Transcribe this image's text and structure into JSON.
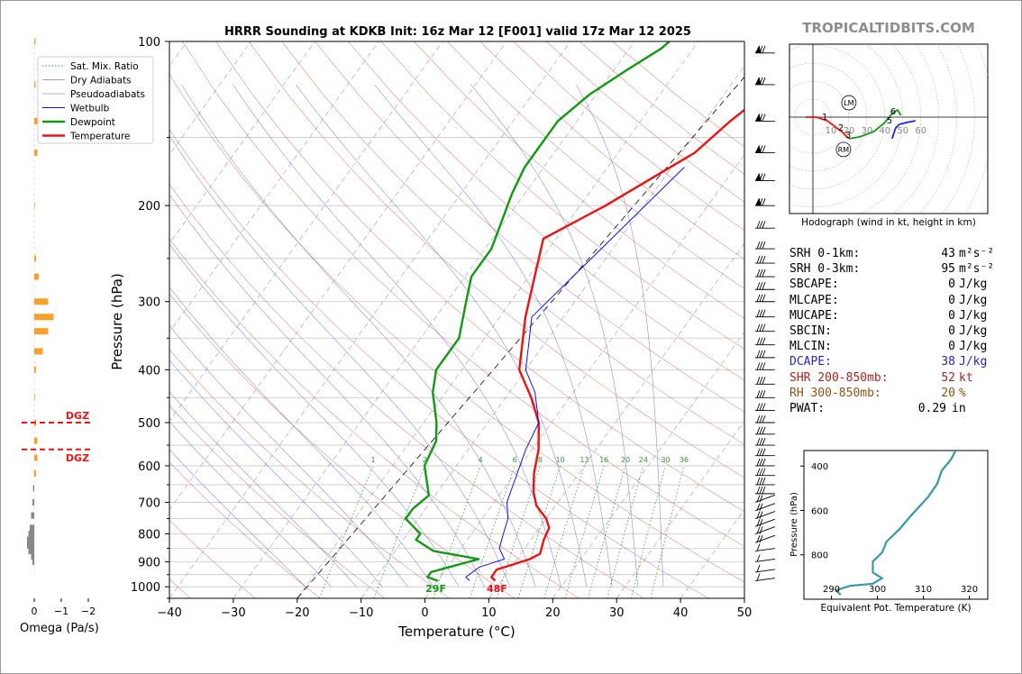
{
  "header": {
    "title": "HRRR Sounding at KDKB Init: 16z Mar 12 [F001] valid 17z Mar 12 2025",
    "brand": "TROPICALTIDBITS.COM"
  },
  "skewt": {
    "xlabel": "Temperature (°C)",
    "ylabel": "Pressure (hPa)",
    "xlim": [
      -40,
      50
    ],
    "pressure_range_hpa": [
      1050,
      100
    ],
    "x_ticks": [
      "−40",
      "−30",
      "−20",
      "−10",
      "0",
      "10",
      "20",
      "30",
      "40",
      "50"
    ],
    "y_ticks": [
      "100",
      "200",
      "300",
      "400",
      "500",
      "600",
      "700",
      "800",
      "900",
      "1000"
    ],
    "mixing_ratio_labels": [
      "1",
      "2",
      "4",
      "6",
      "8",
      "10",
      "13",
      "16",
      "20",
      "24",
      "30",
      "36"
    ],
    "surface_temp_label": "48F",
    "surface_dewpoint_label": "29F",
    "legend": [
      "Sat. Mix. Ratio",
      "Dry Adiabats",
      "Pseudoadiabats",
      "Wetbulb",
      "Dewpoint",
      "Temperature"
    ],
    "colors": {
      "temperature": "#ee1111",
      "dewpoint": "#119911",
      "wetbulb": "#1111ee",
      "dry": "#cc6666",
      "moist": "#6666cc",
      "mixing": "#339933"
    }
  },
  "chart_data": [
    {
      "type": "line",
      "name": "skew-t",
      "xlabel": "Temperature (°C)",
      "ylabel": "Pressure (hPa)",
      "xlim": [
        -40,
        50
      ],
      "ylim": [
        1050,
        100
      ],
      "series": [
        {
          "name": "Temperature",
          "x": [
            9,
            8,
            8,
            12,
            13,
            12,
            11.5,
            10,
            7,
            5,
            3,
            1,
            -2,
            -6,
            -11,
            -16,
            -22,
            -16,
            -8,
            -6,
            -2,
            0
          ],
          "y": [
            975,
            960,
            930,
            890,
            870,
            820,
            780,
            750,
            710,
            670,
            620,
            560,
            500,
            450,
            400,
            320,
            230,
            200,
            160,
            140,
            115,
            100
          ]
        },
        {
          "name": "Dewpoint",
          "x": [
            0,
            -2,
            -2,
            4,
            -4,
            -8,
            -8,
            -12,
            -12,
            -11,
            -15,
            -16,
            -18,
            -22,
            -24,
            -24,
            -27,
            -29,
            -29,
            -32,
            -33,
            -33,
            -31,
            -28,
            -25,
            -24.5
          ],
          "y": [
            975,
            960,
            940,
            890,
            860,
            820,
            800,
            750,
            720,
            680,
            600,
            540,
            500,
            440,
            400,
            350,
            300,
            270,
            240,
            190,
            170,
            140,
            125,
            113,
            103,
            100
          ]
        },
        {
          "name": "Wetbulb",
          "x": [
            5,
            4,
            5,
            8,
            6,
            5,
            4,
            2,
            1,
            -1,
            -2,
            -6,
            -10,
            -15,
            -8
          ],
          "y": [
            975,
            960,
            920,
            890,
            850,
            800,
            750,
            700,
            650,
            560,
            500,
            440,
            400,
            320,
            170
          ]
        }
      ]
    },
    {
      "type": "line",
      "name": "hodograph",
      "xlabel": "Hodograph (wind in kt, height in km)",
      "ring_labels": [
        "10",
        "20",
        "30",
        "40",
        "50",
        "60"
      ],
      "height_labels": [
        "1",
        "2",
        "3",
        "5",
        "6"
      ],
      "annotations": [
        "LM",
        "RM"
      ],
      "series": [
        {
          "name": "0-1km",
          "u": [
            -4,
            2
          ],
          "v": [
            0,
            0
          ]
        },
        {
          "name": "1-3km",
          "u": [
            2,
            8,
            16,
            20
          ],
          "v": [
            0,
            -2,
            -8,
            -12
          ]
        },
        {
          "name": "3-6km",
          "u": [
            20,
            26,
            34,
            40,
            44,
            47,
            49
          ],
          "v": [
            -12,
            -11,
            -8,
            -3,
            2,
            4,
            1
          ]
        },
        {
          "name": "6-9km",
          "u": [
            44,
            46,
            48,
            52,
            57
          ],
          "v": [
            -12,
            -6,
            -4,
            -3,
            -2
          ]
        }
      ]
    },
    {
      "type": "line",
      "name": "theta-e",
      "xlabel": "Equivalent Pot. Temperature (K)",
      "ylabel": "Pressure (hPa)",
      "xlim": [
        284,
        324
      ],
      "ylim": [
        1000,
        330
      ],
      "x_ticks": [
        "290",
        "300",
        "310",
        "320"
      ],
      "y_ticks": [
        "400",
        "600",
        "800"
      ],
      "series": [
        {
          "name": "Theta-e",
          "x": [
            292,
            291,
            294,
            299,
            301,
            299,
            299,
            301,
            302,
            305,
            307,
            311,
            313,
            314,
            316,
            317
          ],
          "y": [
            980,
            960,
            940,
            930,
            905,
            880,
            830,
            790,
            740,
            680,
            630,
            540,
            480,
            420,
            370,
            330
          ]
        }
      ]
    },
    {
      "type": "bar",
      "name": "omega",
      "xlabel": "Omega (Pa/s)",
      "x_ticks": [
        "0",
        "−1",
        "−2"
      ],
      "annotations": [
        "DGZ",
        "DGZ"
      ],
      "pressure": [
        100,
        120,
        140,
        160,
        200,
        250,
        270,
        300,
        320,
        340,
        370,
        400,
        450,
        500,
        540,
        580,
        620,
        660,
        700,
        740,
        780,
        800,
        820,
        840,
        860,
        880,
        900
      ],
      "values": [
        -0.03,
        -0.03,
        -0.1,
        -0.1,
        -0.01,
        -0.05,
        -0.15,
        -0.5,
        -0.7,
        -0.5,
        -0.3,
        -0.05,
        -0.01,
        -0.05,
        -0.1,
        -0.1,
        -0.05,
        0.03,
        0.05,
        0.1,
        0.15,
        0.2,
        0.25,
        0.25,
        0.2,
        0.1,
        0.05
      ]
    }
  ],
  "stats": [
    {
      "label": "SRH 0-1km:",
      "value": "43",
      "unit": "m²s⁻²",
      "color": "#000000"
    },
    {
      "label": "SRH 0-3km:",
      "value": "95",
      "unit": "m²s⁻²",
      "color": "#000000"
    },
    {
      "label": "SBCAPE:",
      "value": "0",
      "unit": "J/kg",
      "color": "#000000"
    },
    {
      "label": "MLCAPE:",
      "value": "0",
      "unit": "J/kg",
      "color": "#000000"
    },
    {
      "label": "MUCAPE:",
      "value": "0",
      "unit": "J/kg",
      "color": "#000000"
    },
    {
      "label": "SBCIN:",
      "value": "0",
      "unit": "J/kg",
      "color": "#000000"
    },
    {
      "label": "MLCIN:",
      "value": "0",
      "unit": "J/kg",
      "color": "#000000"
    },
    {
      "label": "DCAPE:",
      "value": "38",
      "unit": "J/kg",
      "color": "#2222cc"
    },
    {
      "label": "SHR 200-850mb:",
      "value": "52",
      "unit": "kt",
      "color": "#aa2222"
    },
    {
      "label": "RH 300-850mb:",
      "value": "20",
      "unit": "%",
      "color": "#885511"
    },
    {
      "label": "PWAT:",
      "value": "0.29",
      "unit": "in",
      "color": "#000000"
    }
  ]
}
